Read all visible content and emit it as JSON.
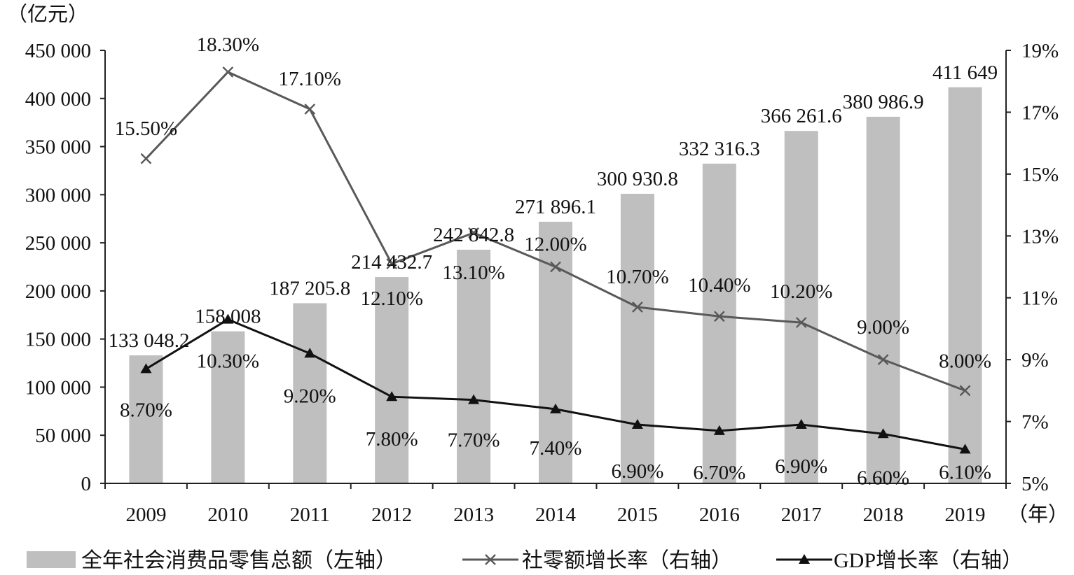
{
  "chart_data": {
    "type": "bar",
    "categories": [
      "2009",
      "2010",
      "2011",
      "2012",
      "2013",
      "2014",
      "2015",
      "2016",
      "2017",
      "2018",
      "2019"
    ],
    "left_axis": {
      "unit": "（亿元）",
      "ylim": [
        0,
        450000
      ],
      "ticks": [
        0,
        50000,
        100000,
        150000,
        200000,
        250000,
        300000,
        350000,
        400000,
        450000
      ],
      "tick_labels": [
        "0",
        "50 000",
        "100 000",
        "150 000",
        "200 000",
        "250 000",
        "300 000",
        "350 000",
        "400 000",
        "450 000"
      ]
    },
    "right_axis": {
      "ylim": [
        5,
        19
      ],
      "ticks": [
        5,
        7,
        9,
        11,
        13,
        15,
        17,
        19
      ],
      "tick_labels": [
        "5%",
        "7%",
        "9%",
        "11%",
        "13%",
        "15%",
        "17%",
        "19%"
      ]
    },
    "x_unit": "（年）",
    "series": [
      {
        "name": "全年社会消费品零售总额（左轴）",
        "type": "bar",
        "axis": "left",
        "color": "#bfbfbf",
        "values": [
          133048.2,
          158008,
          187205.8,
          214432.7,
          242842.8,
          271896.1,
          300930.8,
          332316.3,
          366261.6,
          380986.9,
          411649
        ],
        "labels": [
          "133 048.2",
          "158 008",
          "187 205.8",
          "214 432.7",
          "242 842.8",
          "271 896.1",
          "300 930.8",
          "332 316.3",
          "366 261.6",
          "380 986.9",
          "411 649"
        ]
      },
      {
        "name": "社零额增长率（右轴）",
        "type": "line",
        "axis": "right",
        "marker": "x",
        "color": "#595959",
        "values": [
          15.5,
          18.3,
          17.1,
          12.1,
          13.1,
          12.0,
          10.7,
          10.4,
          10.2,
          9.0,
          8.0
        ],
        "labels": [
          "15.50%",
          "18.30%",
          "17.10%",
          "12.10%",
          "13.10%",
          "12.00%",
          "10.70%",
          "10.40%",
          "10.20%",
          "9.00%",
          "8.00%"
        ]
      },
      {
        "name": "GDP增长率（右轴）",
        "type": "line",
        "axis": "right",
        "marker": "triangle",
        "color": "#111111",
        "values": [
          8.7,
          10.3,
          9.2,
          7.8,
          7.7,
          7.4,
          6.9,
          6.7,
          6.9,
          6.6,
          6.1
        ],
        "labels": [
          "8.70%",
          "10.30%",
          "9.20%",
          "7.80%",
          "7.70%",
          "7.40%",
          "6.90%",
          "6.70%",
          "6.90%",
          "6.60%",
          "6.10%"
        ]
      }
    ],
    "grid": false,
    "legend_position": "bottom"
  }
}
